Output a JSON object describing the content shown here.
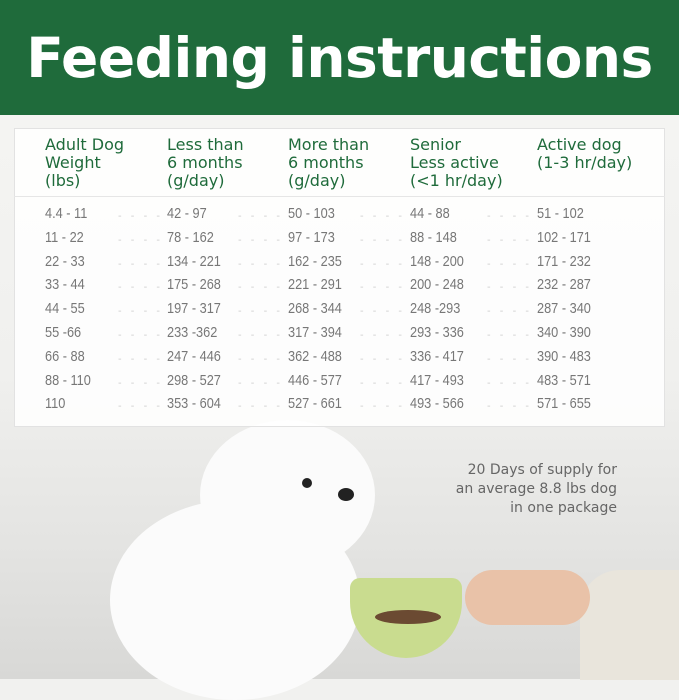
{
  "header": {
    "title": "Feeding instructions",
    "bg_color": "#1f6b3b"
  },
  "table": {
    "headers": [
      "Adult Dog\nWeight\n(lbs)",
      "Less than\n6 months\n(g/day)",
      "More than\n6 months\n(g/day)",
      "Senior\nLess active\n(<1 hr/day)",
      "Active dog\n(1-3 hr/day)"
    ],
    "rows": [
      [
        "4.4 - 11",
        "42 - 97",
        "50 - 103",
        "44 - 88",
        "51 - 102"
      ],
      [
        "11 - 22",
        "78 - 162",
        "97 - 173",
        "88 - 148",
        "102 - 171"
      ],
      [
        "22 - 33",
        "134 - 221",
        "162  - 235",
        "148 - 200",
        "171 - 232"
      ],
      [
        "33 - 44",
        "175 - 268",
        "221 - 291",
        "200 - 248",
        "232 - 287"
      ],
      [
        "44 - 55",
        "197 - 317",
        "268 - 344",
        "248 -293",
        "287 - 340"
      ],
      [
        "55 -66",
        "233 -362",
        "317 - 394",
        "293 - 336",
        "340 - 390"
      ],
      [
        "66 - 88",
        "247 - 446",
        "362 - 488",
        "336 - 417",
        "390 - 483"
      ],
      [
        "88 - 110",
        "298 - 527",
        "446 - 577",
        "417 - 493",
        "483 - 571"
      ],
      [
        "110",
        "353 - 604",
        "527 - 661",
        " 493 - 566",
        "571 - 655"
      ]
    ],
    "separator": "- - - -"
  },
  "note": "20 Days of supply for\nan average 8.8 lbs dog\nin one package"
}
